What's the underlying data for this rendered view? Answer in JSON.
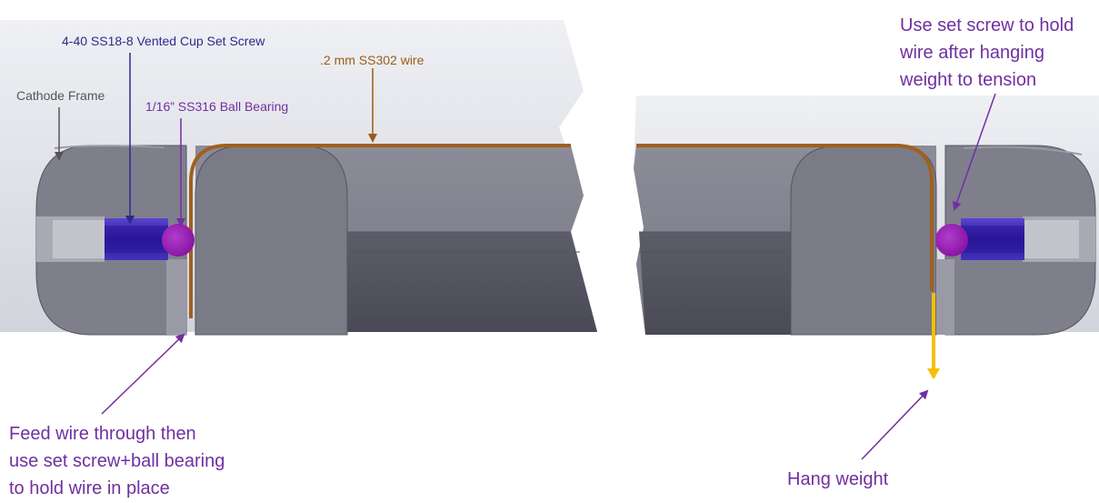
{
  "labels": {
    "set_screw": "4-40 SS18-8 Vented Cup Set Screw",
    "cathode_frame": "Cathode Frame",
    "ball_bearing": "1/16”  SS316 Ball Bearing",
    "wire": ".2 mm SS302 wire",
    "feed_wire": [
      "Feed wire through then",
      "use set screw+ball bearing",
      "to hold wire in place"
    ],
    "hold_wire": [
      "Use set screw to hold",
      "wire after hanging",
      "weight to tension"
    ],
    "hang_weight": "Hang weight"
  },
  "colors": {
    "set_screw_label": "#2c2a8c",
    "cathode_label": "#555555",
    "ball_bearing_label": "#7030a0",
    "wire_label": "#9c5b17",
    "annotation": "#7030a0",
    "frame_fill": "#7f7f8c",
    "wire": "#a0601e",
    "ball": "#9a1fb3",
    "screw": "#3a22b0",
    "weight_arrow": "#f5c000"
  },
  "icons": [
    "set-screw-icon",
    "ball-bearing-icon",
    "wire-path",
    "weight-arrow-icon"
  ]
}
